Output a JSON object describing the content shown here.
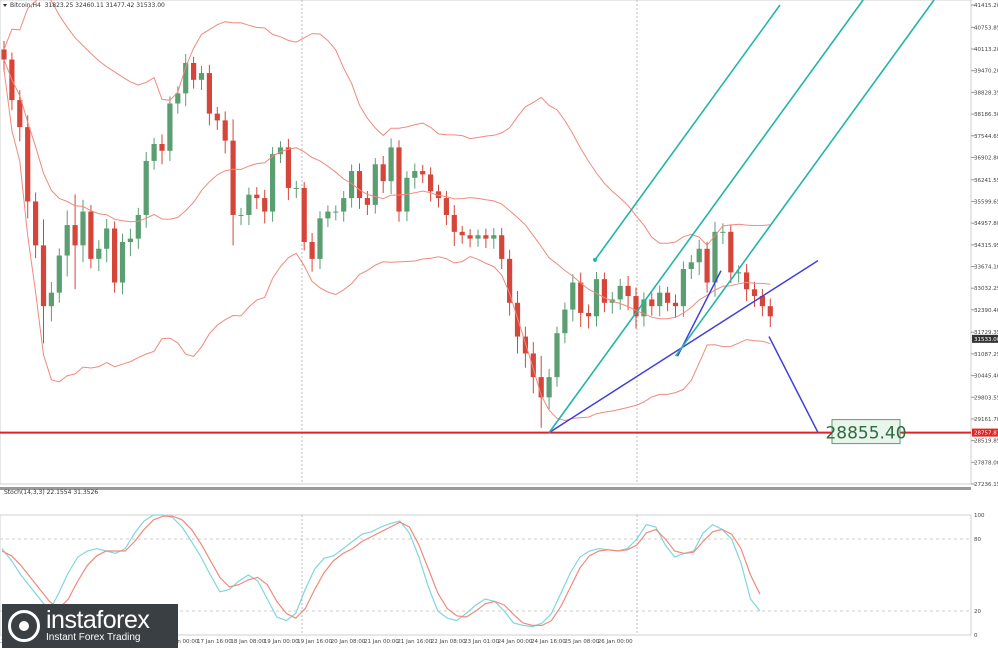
{
  "header": {
    "symbol_info": "Bitcoin,H4  31823.25 32460.11 31477.42 31533.00",
    "indicator_info": "Stoch(14,3,3) 22.1554 31.3526"
  },
  "target_label": "28855.40",
  "price_markers": {
    "current": "31533.00",
    "level": "28757.87"
  },
  "logo": {
    "brand": "instaforex",
    "tagline": "Instant Forex Trading"
  },
  "colors": {
    "bull": "#5a9e72",
    "bear": "#d6453a",
    "bands": "#f08a7c",
    "channel": "#22b5a8",
    "trend": "#3e3ee0",
    "support": "#e02424",
    "stoch_main": "#7fd6dc",
    "stoch_signal": "#f08a7c"
  },
  "chart_data": [
    {
      "type": "candlestick",
      "price_axis": {
        "min": 27236.15,
        "max": 41415.2,
        "ticks": [
          "41415.20",
          "40753.85",
          "40113.20",
          "39470.20",
          "38828.35",
          "38186.30",
          "37544.65",
          "36902.80",
          "36241.55",
          "35599.65",
          "34957.80",
          "34315.95",
          "33674.10",
          "33032.25",
          "32390.40",
          "31729.35",
          "31087.25",
          "30445.40",
          "29803.55",
          "29161.70",
          "28519.85",
          "27878.00",
          "27236.15"
        ]
      },
      "time_axis": [
        "13 Jan 2021",
        "14 Jan 00:00",
        "14 Jan 16:00",
        "15 Jan 08:00",
        "16 Jan 01:00",
        "17 Jan 00:00",
        "17 Jan 16:00",
        "18 Jan 08:00",
        "19 Jan 00:00",
        "19 Jan 16:00",
        "20 Jan 08:00",
        "21 Jan 00:00",
        "21 Jan 16:00",
        "22 Jan 08:00",
        "23 Jan 01:00",
        "24 Jan 00:00",
        "24 Jan 16:00",
        "25 Jan 08:00",
        "26 Jan 00:00"
      ],
      "support_level": 28757.87,
      "target": 28855.4,
      "closes": [
        39800,
        38600,
        37800,
        35600,
        34300,
        32500,
        32900,
        34000,
        34900,
        34300,
        35300,
        33900,
        34200,
        34800,
        33200,
        34400,
        34500,
        35200,
        36800,
        37300,
        37100,
        38500,
        38800,
        39700,
        39200,
        39400,
        38200,
        38000,
        37400,
        35200,
        35200,
        35800,
        35700,
        35300,
        37000,
        37200,
        36000,
        36000,
        34400,
        33900,
        35100,
        35300,
        35300,
        35700,
        36500,
        35700,
        35500,
        36700,
        36200,
        37200,
        35300,
        36300,
        36500,
        36400,
        35900,
        35700,
        35200,
        34700,
        34600,
        34500,
        34600,
        34500,
        34600,
        33900,
        32600,
        31600,
        31100,
        30400,
        29800,
        30400,
        31700,
        32400,
        33200,
        32300,
        32200,
        33300,
        32600,
        32700,
        33100,
        32800,
        32200,
        32700,
        32500,
        32900,
        32600,
        32500,
        33600,
        33800,
        34200,
        33200,
        34700,
        34700,
        33500,
        33500,
        33000,
        32800,
        32500,
        32200
      ]
    },
    {
      "type": "line",
      "title": "Stoch(14,3,3)",
      "ylim": [
        0,
        100
      ],
      "ticks": [
        100,
        80,
        20,
        0
      ],
      "series": [
        {
          "values": [
            72,
            62,
            50,
            40,
            30,
            20,
            35,
            52,
            65,
            70,
            72,
            70,
            68,
            72,
            85,
            95,
            100,
            100,
            98,
            90,
            78,
            65,
            50,
            36,
            38,
            45,
            50,
            45,
            30,
            15,
            12,
            18,
            38,
            55,
            64,
            66,
            72,
            78,
            84,
            86,
            90,
            93,
            95,
            85,
            65,
            40,
            20,
            14,
            12,
            18,
            25,
            30,
            28,
            20,
            10,
            8,
            7,
            10,
            18,
            35,
            52,
            65,
            70,
            72,
            71,
            70,
            72,
            80,
            92,
            90,
            75,
            65,
            68,
            70,
            85,
            92,
            88,
            80,
            60,
            30,
            20
          ]
        },
        {
          "values": [
            70,
            66,
            58,
            48,
            38,
            28,
            22,
            30,
            45,
            58,
            66,
            70,
            70,
            70,
            78,
            88,
            96,
            99,
            99,
            96,
            88,
            76,
            62,
            48,
            40,
            42,
            46,
            48,
            42,
            28,
            18,
            14,
            22,
            38,
            52,
            62,
            68,
            72,
            78,
            82,
            86,
            90,
            94,
            90,
            75,
            55,
            35,
            22,
            16,
            15,
            20,
            26,
            28,
            25,
            17,
            10,
            8,
            8,
            12,
            24,
            40,
            56,
            66,
            70,
            71,
            70,
            71,
            75,
            85,
            88,
            80,
            70,
            68,
            69,
            78,
            86,
            88,
            84,
            72,
            50,
            34
          ]
        }
      ]
    }
  ]
}
